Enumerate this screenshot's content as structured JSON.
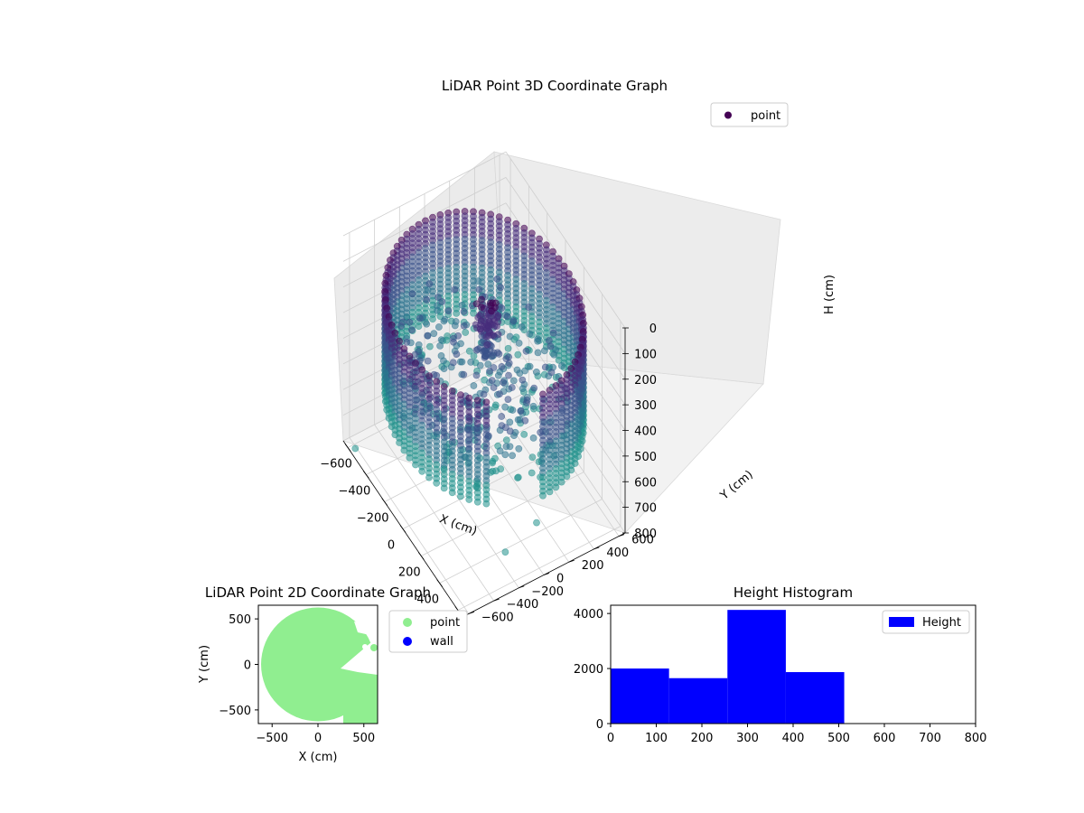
{
  "figure": {
    "chart_data": [
      {
        "type": "scatter",
        "projection": "3d",
        "title": "LiDAR Point 3D Coordinate Graph",
        "xlabel": "X (cm)",
        "ylabel": "Y (cm)",
        "zlabel": "H (cm)",
        "x_ticks": [
          "−600",
          "−400",
          "−200",
          "0",
          "200",
          "400",
          "600"
        ],
        "y_ticks": [
          "−600",
          "−400",
          "−200",
          "0",
          "200",
          "400",
          "600"
        ],
        "z_ticks": [
          "0",
          "100",
          "200",
          "300",
          "400",
          "500",
          "600",
          "700",
          "800"
        ],
        "xlim": [
          -650,
          650
        ],
        "ylim": [
          -650,
          650
        ],
        "zlim": [
          800,
          0
        ],
        "z_inverted": true,
        "legend": [
          {
            "label": "point",
            "color": "#440154"
          }
        ],
        "legend_position": "upper right",
        "colormap": "viridis",
        "wall_radius_cm": 640,
        "wall_height_range_cm": [
          100,
          500
        ],
        "grid": true
      },
      {
        "type": "scatter",
        "title": "LiDAR Point 2D Coordinate Graph",
        "xlabel": "X (cm)",
        "ylabel": "Y (cm)",
        "x_ticks": [
          "−500",
          "0",
          "500"
        ],
        "y_ticks": [
          "500",
          "0",
          "−500"
        ],
        "xlim": [
          -650,
          650
        ],
        "ylim": [
          -650,
          650
        ],
        "series": [
          {
            "name": "point",
            "color": "#90ee90"
          },
          {
            "name": "wall",
            "color": "#0000ff"
          }
        ],
        "legend_position": "outside right",
        "grid": false
      },
      {
        "type": "bar",
        "title": "Height Histogram",
        "xlim": [
          0,
          800
        ],
        "ylim": [
          0,
          4300
        ],
        "x_ticks": [
          "0",
          "100",
          "200",
          "300",
          "400",
          "500",
          "600",
          "700",
          "800"
        ],
        "y_ticks": [
          "0",
          "2000",
          "4000"
        ],
        "bin_edges": [
          0,
          128,
          256,
          384,
          512
        ],
        "values": [
          2000,
          1650,
          4130,
          1870
        ],
        "series": [
          {
            "name": "Height",
            "color": "#0000ff"
          }
        ],
        "legend_position": "upper right",
        "grid": false
      }
    ]
  }
}
